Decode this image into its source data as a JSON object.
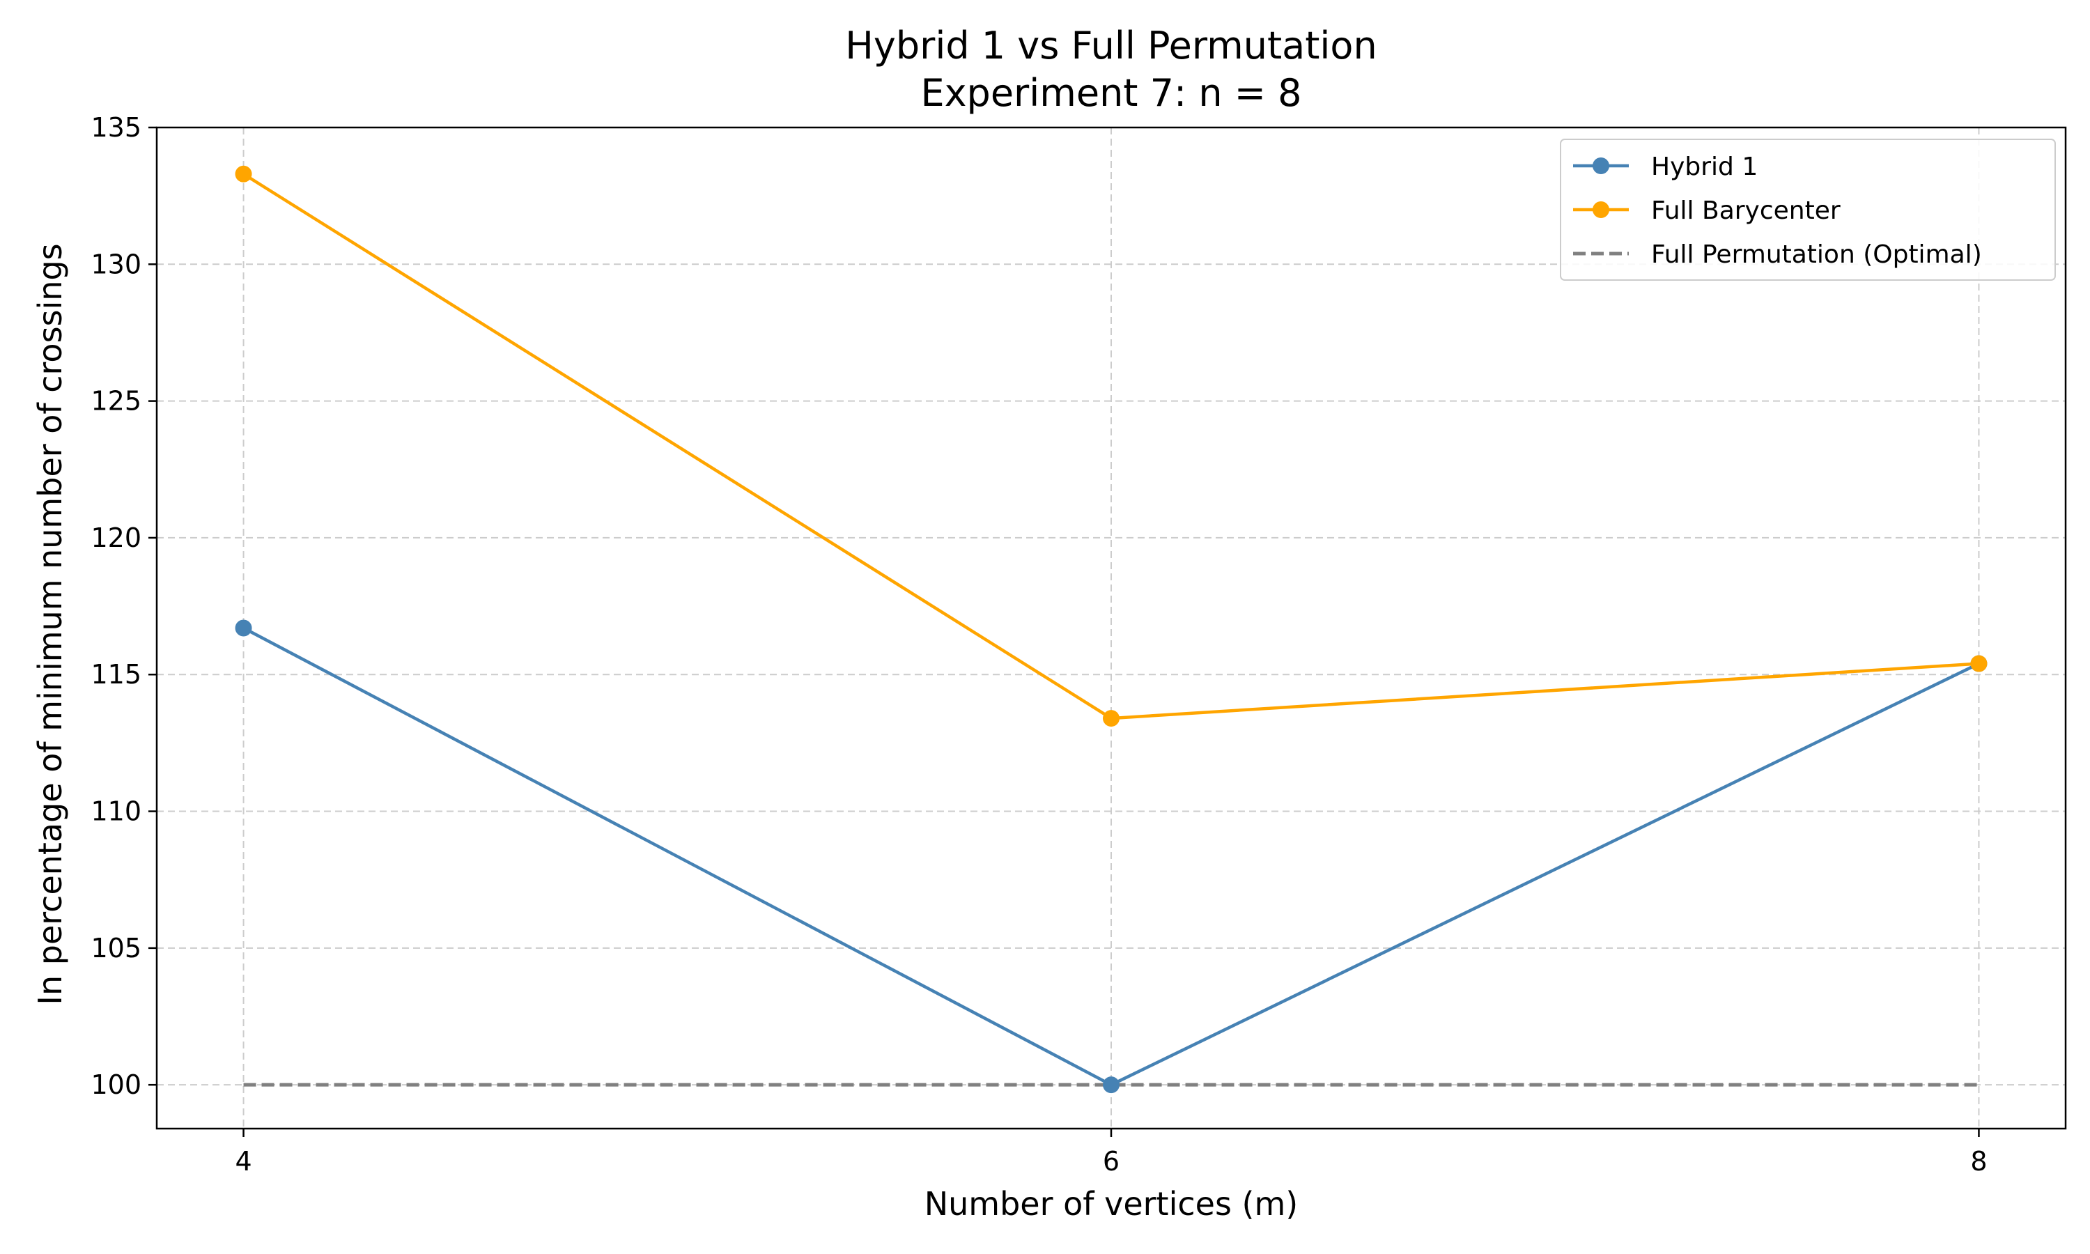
{
  "chart_data": {
    "type": "line",
    "title": "Hybrid 1 vs Full Permutation",
    "subtitle": "Experiment 7:  n = 8",
    "xlabel": "Number of vertices (m)",
    "ylabel": "In percentage of minimum number of crossings",
    "x": [
      4,
      6,
      8
    ],
    "xticks": [
      "4",
      "6",
      "8"
    ],
    "xlim": [
      3.8,
      8.2
    ],
    "ylim": [
      98.4,
      135
    ],
    "yticks": [
      "100",
      "105",
      "110",
      "115",
      "120",
      "125",
      "130",
      "135"
    ],
    "grid": true,
    "legend_position": "top-right",
    "series": [
      {
        "name": "Hybrid 1",
        "values": [
          116.7,
          100.0,
          115.4
        ],
        "color": "#4682b4",
        "style": "solid",
        "markers": true
      },
      {
        "name": "Full Barycenter",
        "values": [
          133.3,
          113.4,
          115.4
        ],
        "color": "#ffa500",
        "style": "solid",
        "markers": true
      },
      {
        "name": "Full Permutation (Optimal)",
        "values": [
          100,
          100,
          100
        ],
        "color": "#808080",
        "style": "dashed",
        "markers": false
      }
    ]
  }
}
